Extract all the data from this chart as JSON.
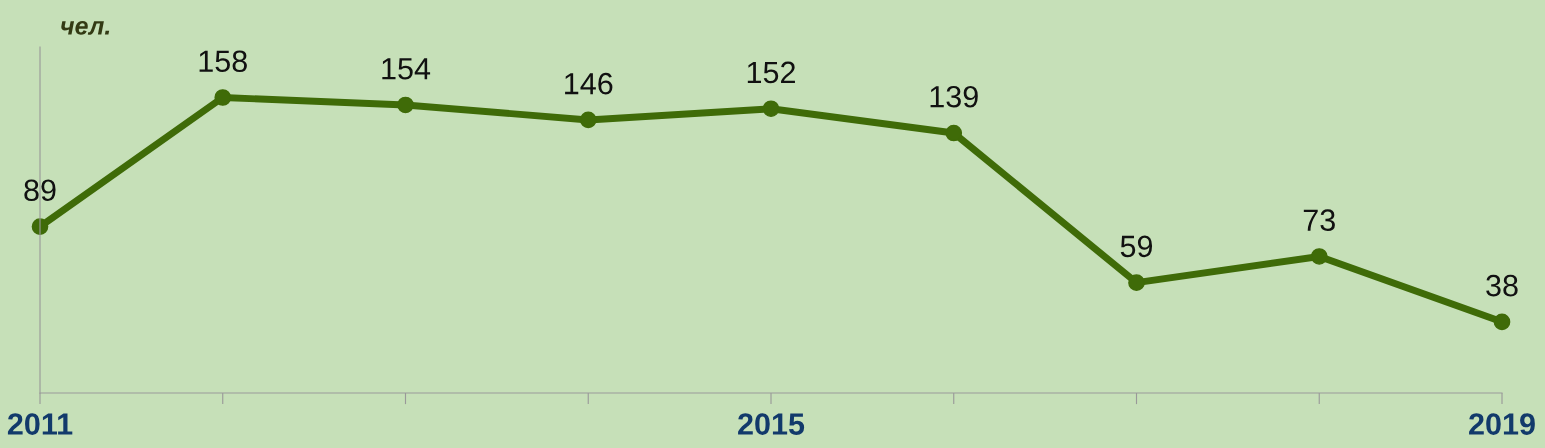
{
  "chart_data": {
    "type": "line",
    "ylabel": "чел.",
    "categories": [
      "2011",
      null,
      null,
      null,
      "2015",
      null,
      null,
      null,
      "2019"
    ],
    "series": [
      {
        "color": "#3f6b08",
        "values": [
          89,
          158,
          154,
          146,
          152,
          139,
          59,
          73,
          38
        ]
      }
    ],
    "ylim": [
      0,
      185
    ],
    "data_labels": true,
    "marker": "circle",
    "line_style": "solid",
    "grid": false,
    "legend": false,
    "tick_labels": "x"
  }
}
